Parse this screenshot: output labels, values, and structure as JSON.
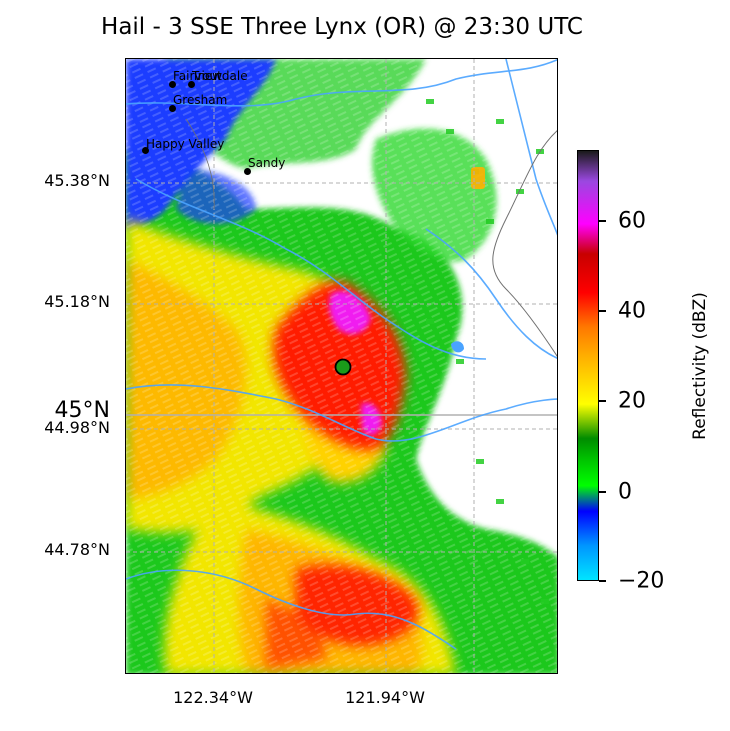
{
  "title": "Hail - 3 SSE Three Lynx (OR) @ 23:30 UTC",
  "lat_labels": [
    "45.38°N",
    "45.18°N",
    "45°N",
    "44.98°N",
    "44.78°N"
  ],
  "lon_labels": [
    "122.34°W",
    "121.94°W"
  ],
  "cities": [
    "Fairview",
    "Troutdale",
    "Gresham",
    "Happy Valley",
    "Sandy"
  ],
  "colorbar": {
    "label": "Reflectivity (dBZ)",
    "ticks": [
      "60",
      "40",
      "20",
      "0",
      "−20"
    ],
    "range": [
      -20,
      75
    ]
  },
  "colors": {
    "marker_fill": "#1a9a1a",
    "gridline": "#b0b0b0",
    "river": "#4aa3ff"
  },
  "marker_icon": "event-location-marker"
}
